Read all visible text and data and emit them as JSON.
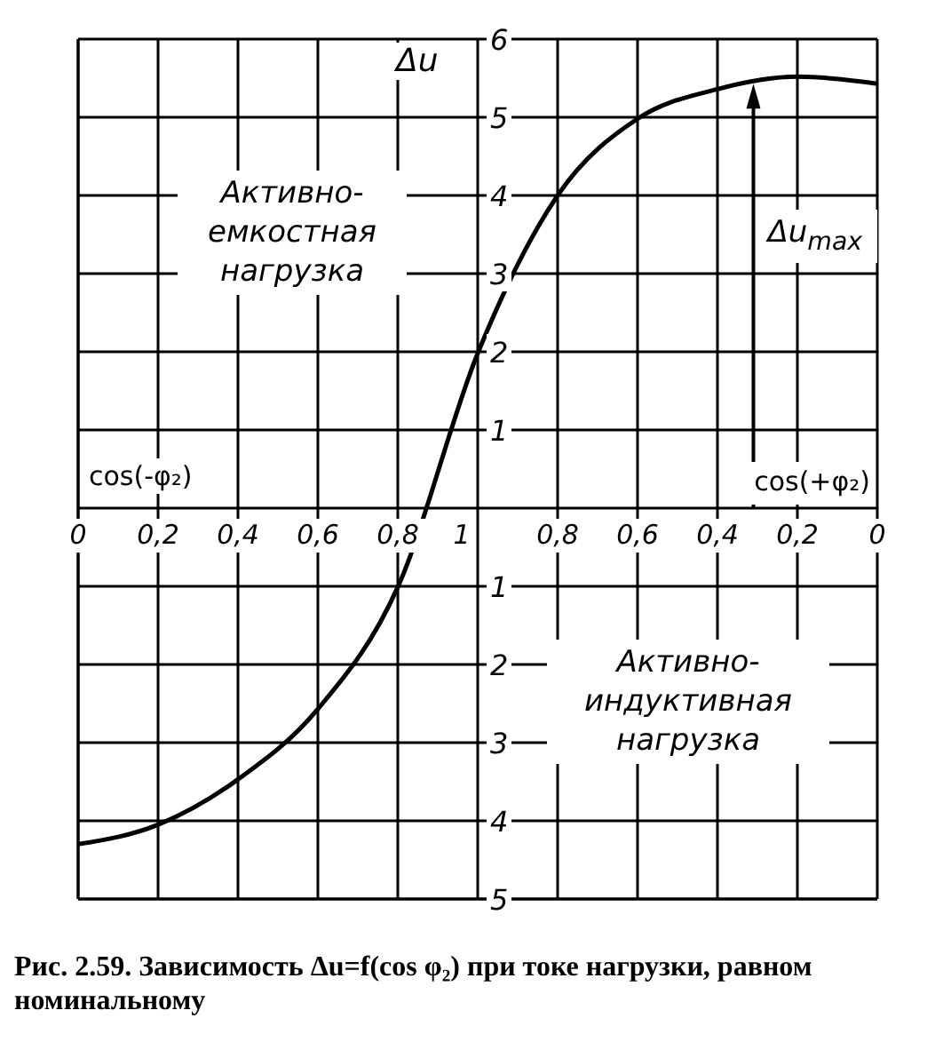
{
  "chart_data": {
    "type": "line",
    "title": "Рис. 2.59. Зависимость Δu=f(cos φ₂) при токе нагрузки, равном номинальному",
    "ylabel": "Δu",
    "xlabel": "cos(-φ₂)",
    "annotations": [
      "Активно-емкостная нагрузка",
      "Активно-индуктивная нагрузка",
      "cos(+φ₂)",
      "Δu$_{max}$"
    ],
    "categories": [
      "0",
      "0,2",
      "0,4",
      "0,6",
      "0,8",
      "1",
      "0,8",
      "0,6",
      "0,4",
      "0,2",
      "0"
    ],
    "series": [
      {
        "color": "#000000",
        "values": [
          -4.3,
          -4.05,
          -3.47,
          -2.57,
          -1.01,
          1.98,
          4.0,
          4.98,
          5.36,
          5.52,
          5.43
        ]
      }
    ],
    "ylim": [
      -5,
      6
    ],
    "yticks": [
      {
        "value": -5,
        "label": "5"
      },
      {
        "value": -4,
        "label": "4"
      },
      {
        "value": -3,
        "label": "3"
      },
      {
        "value": -2,
        "label": "2"
      },
      {
        "value": -1,
        "label": "1"
      },
      {
        "value": 0,
        "label": null
      },
      1,
      2,
      3,
      4,
      5,
      6
    ],
    "grid": true,
    "marker": "none",
    "line_style": "solid"
  }
}
